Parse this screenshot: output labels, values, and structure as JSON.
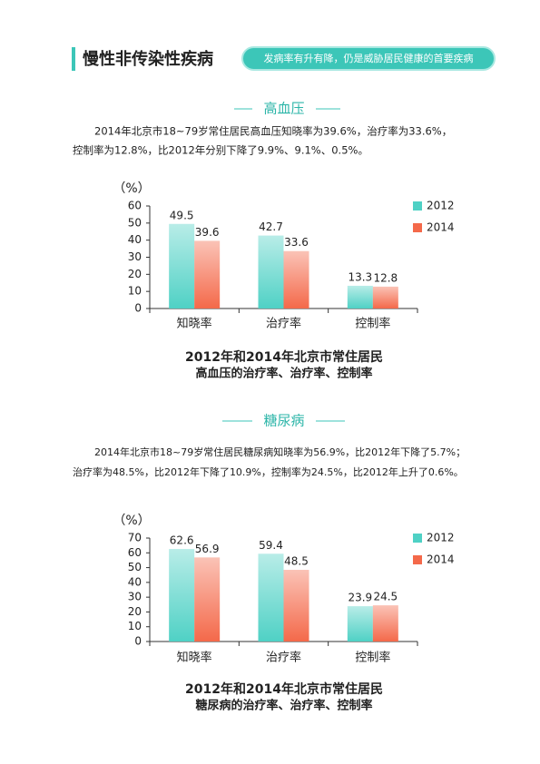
{
  "header": {
    "title": "慢性非传染性疾病",
    "tagline": "发病率有升有降，仍是威胁居民健康的首要疾病"
  },
  "sections": [
    {
      "heading": "高血压",
      "paragraph": [
        "2014年北京市18~79岁常住居民高血压知晓率为39.6%，治疗率为33.6%，",
        "控制率为12.8%，比2012年分别下降了9.9%、9.1%、0.5%。"
      ]
    },
    {
      "heading": "糖尿病",
      "paragraph": [
        "2014年北京市18~79岁常住居民糖尿病知晓率为56.9%，比2012年下降了5.7%；",
        "治疗率为48.5%，比2012年下降了10.9%，控制率为24.5%，比2012年上升了0.6%。"
      ]
    }
  ],
  "chart_data": [
    {
      "type": "bar",
      "title": "2012年和2014年北京市常住居民",
      "subtitle": "高血压的治疗率、治疗率、控制率",
      "y_label": "（%）",
      "categories": [
        "知晓率",
        "治疗率",
        "控制率"
      ],
      "series": [
        {
          "name": "2012",
          "color": "#4fd1c5",
          "values": [
            49.5,
            42.7,
            13.3
          ]
        },
        {
          "name": "2014",
          "color": "#f4694a",
          "values": [
            39.6,
            33.6,
            12.8
          ]
        }
      ],
      "ylim": [
        0,
        60
      ],
      "yticks": [
        0,
        10,
        20,
        30,
        40,
        50,
        60
      ],
      "legend": "upper right"
    },
    {
      "type": "bar",
      "title": "2012年和2014年北京市常住居民",
      "subtitle": "糖尿病的治疗率、治疗率、控制率",
      "y_label": "（%）",
      "categories": [
        "知晓率",
        "治疗率",
        "控制率"
      ],
      "series": [
        {
          "name": "2012",
          "color": "#4fd1c5",
          "values": [
            62.6,
            59.4,
            23.9
          ]
        },
        {
          "name": "2014",
          "color": "#f4694a",
          "values": [
            56.9,
            48.5,
            24.5
          ]
        }
      ],
      "ylim": [
        0,
        70
      ],
      "yticks": [
        0,
        10,
        20,
        30,
        40,
        50,
        60,
        70
      ],
      "legend": "upper right"
    }
  ]
}
